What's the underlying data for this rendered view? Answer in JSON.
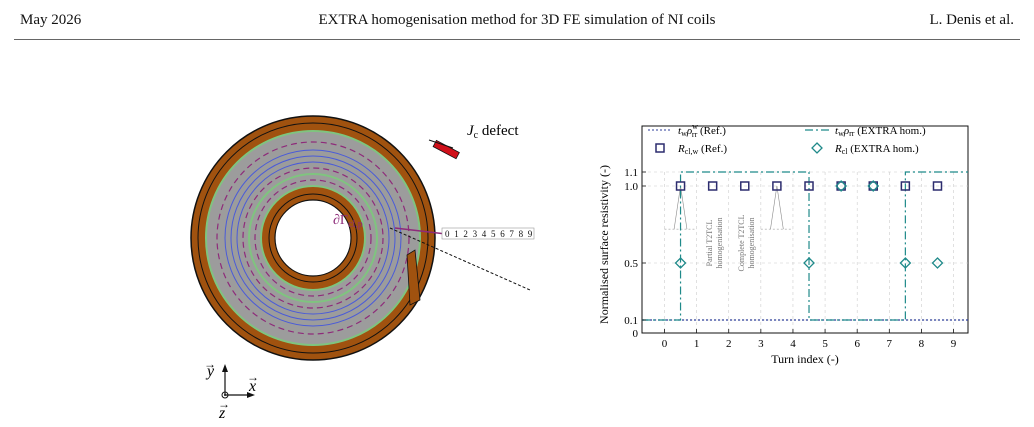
{
  "header": {
    "left": "May 2026",
    "center": "EXTRA homogenisation method for 3D FE simulation of NI coils",
    "right": "L. Denis et al."
  },
  "coil_figure": {
    "defect_label": "J",
    "defect_label_sub": "c",
    "defect_label_suffix": " defect",
    "boundary_label": "∂Γ",
    "boundary_label_sub": "cl,p",
    "turn_numbers": [
      "0",
      "1",
      "2",
      "3",
      "4",
      "5",
      "6",
      "7",
      "8",
      "9"
    ],
    "axes": {
      "y": "y",
      "x": "x",
      "z": "z"
    },
    "colors": {
      "copper": "#A0520F",
      "winding": "#9C9C9C",
      "insulation_green": "#7FC47F",
      "turn_blue": "#4A5BD8",
      "dashed_purple": "#8E2B7A",
      "defect": "#D0101A"
    }
  },
  "chart_data": {
    "type": "line",
    "xlabel": "Turn index (-)",
    "ylabel": "Normalised surface resistivity (-)",
    "xlim": [
      -0.7,
      9.45
    ],
    "xticks": [
      "0",
      "1",
      "2",
      "3",
      "4",
      "5",
      "6",
      "7",
      "8",
      "9"
    ],
    "yticks": [
      {
        "value": 0,
        "label": "0"
      },
      {
        "value": 0.1,
        "label": "0.1"
      },
      {
        "value": 0.5,
        "label": "0.5"
      },
      {
        "value": 1.0,
        "label": "1.0"
      },
      {
        "value": 1.1,
        "label": "1.1"
      }
    ],
    "grid": true,
    "legend_position": "top",
    "legend": [
      {
        "math": "t",
        "sub": "w",
        "math2": "ρ",
        "sup2": "w",
        "sub2": "rr",
        "text": " (Ref.)"
      },
      {
        "math": "t",
        "sub": "w",
        "math2": "ρ",
        "sub2": "rr",
        "text": " (EXTRA hom.)"
      },
      {
        "math": "R",
        "sub": "cl,w",
        "text": " (Ref.)"
      },
      {
        "math": "R",
        "sub": "cl",
        "text": " (EXTRA hom.)"
      }
    ],
    "series": [
      {
        "key": "ref_line",
        "style": "dotted",
        "color": "#2c3e99",
        "x": [
          -0.7,
          9.45
        ],
        "y": [
          0.1,
          0.1
        ]
      },
      {
        "key": "extra_line",
        "style": "dashdot",
        "color": "#1f8a8a",
        "x": [
          -0.7,
          0.5,
          0.5,
          4.5,
          4.5,
          7.5,
          7.5,
          9.45
        ],
        "y": [
          0.1,
          0.1,
          1.1,
          1.1,
          0.1,
          0.1,
          1.1,
          1.1
        ]
      },
      {
        "key": "ref_squares",
        "marker": "square",
        "color": "#2c2c6e",
        "x": [
          0.5,
          1.5,
          2.5,
          3.5,
          4.5,
          5.5,
          6.5,
          7.5,
          8.5
        ],
        "y": [
          1.0,
          1.0,
          1.0,
          1.0,
          1.0,
          1.0,
          1.0,
          1.0,
          1.0
        ]
      },
      {
        "key": "extra_diamonds",
        "marker": "diamond",
        "color": "#1f8a8a",
        "x": [
          0.5,
          4.5,
          5.5,
          6.5,
          7.5,
          8.5
        ],
        "y": [
          0.5,
          0.5,
          1.0,
          1.0,
          0.5,
          0.5
        ]
      }
    ],
    "annotations": [
      {
        "text": "Partial T2TCL",
        "text2": "homogenisation"
      },
      {
        "text": "Complete T2TCL",
        "text2": "homogenisation"
      }
    ]
  }
}
